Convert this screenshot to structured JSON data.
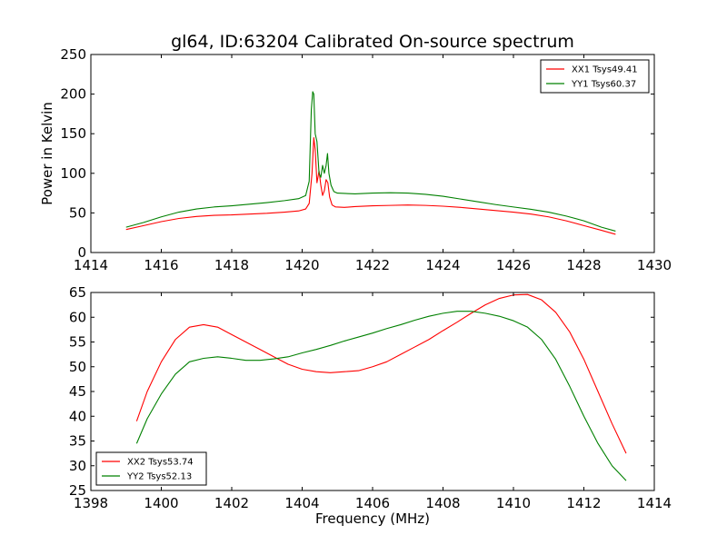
{
  "chart_data": [
    {
      "type": "line",
      "title": "gl64, ID:63204 Calibrated On-source spectrum",
      "xlabel": "",
      "ylabel": "Power in Kelvin",
      "xlim": [
        1414,
        1430
      ],
      "ylim": [
        0,
        250
      ],
      "xticks": [
        "1414",
        "1416",
        "1418",
        "1420",
        "1422",
        "1424",
        "1426",
        "1428",
        "1430"
      ],
      "yticks": [
        "0",
        "50",
        "100",
        "150",
        "200",
        "250"
      ],
      "grid": false,
      "legend_position": "top-right",
      "series": [
        {
          "name": "XX1 Tsys49.41",
          "color": "#ff0000",
          "x": [
            1415.0,
            1415.5,
            1416.0,
            1416.5,
            1417.0,
            1417.5,
            1418.0,
            1418.5,
            1419.0,
            1419.5,
            1419.9,
            1420.1,
            1420.2,
            1420.28,
            1420.33,
            1420.37,
            1420.42,
            1420.48,
            1420.53,
            1420.58,
            1420.63,
            1420.68,
            1420.73,
            1420.78,
            1420.85,
            1420.95,
            1421.2,
            1421.5,
            1422.0,
            1422.5,
            1423.0,
            1423.5,
            1424.0,
            1424.5,
            1425.0,
            1425.5,
            1426.0,
            1426.5,
            1427.0,
            1427.5,
            1428.0,
            1428.5,
            1428.9
          ],
          "y": [
            29,
            34,
            39,
            43,
            45.5,
            47,
            47.5,
            48.5,
            49.5,
            51,
            52.5,
            55,
            62,
            100,
            145,
            130,
            88,
            103,
            85,
            72,
            78,
            92,
            88,
            70,
            60,
            57.5,
            57,
            58,
            59,
            59.5,
            60,
            59.5,
            58.5,
            57,
            55,
            53,
            51,
            48.5,
            45,
            40,
            34,
            28,
            23
          ]
        },
        {
          "name": "YY1 Tsys60.37",
          "color": "#008000",
          "x": [
            1415.0,
            1415.5,
            1416.0,
            1416.5,
            1417.0,
            1417.5,
            1418.0,
            1418.5,
            1419.0,
            1419.5,
            1419.9,
            1420.1,
            1420.2,
            1420.26,
            1420.3,
            1420.33,
            1420.37,
            1420.42,
            1420.48,
            1420.53,
            1420.58,
            1420.63,
            1420.68,
            1420.72,
            1420.76,
            1420.82,
            1420.9,
            1421.0,
            1421.5,
            1422.0,
            1422.5,
            1423.0,
            1423.5,
            1424.0,
            1424.5,
            1425.0,
            1425.5,
            1426.0,
            1426.5,
            1427.0,
            1427.5,
            1428.0,
            1428.5,
            1428.9
          ],
          "y": [
            32,
            38,
            45,
            51,
            55,
            57.5,
            59,
            61,
            63,
            65.5,
            68,
            72,
            90,
            180,
            203,
            200,
            150,
            140,
            100,
            95,
            110,
            100,
            110,
            125,
            100,
            85,
            77,
            75,
            74,
            75,
            75.5,
            75,
            73.5,
            71,
            67.5,
            64,
            60.5,
            57.5,
            54.5,
            51,
            46,
            40,
            32,
            27
          ]
        }
      ]
    },
    {
      "type": "line",
      "title": "",
      "xlabel": "Frequency (MHz)",
      "ylabel": "",
      "xlim": [
        1398,
        1414
      ],
      "ylim": [
        25,
        65
      ],
      "xticks": [
        "1398",
        "1400",
        "1402",
        "1404",
        "1406",
        "1408",
        "1410",
        "1412",
        "1414"
      ],
      "yticks": [
        "25",
        "30",
        "35",
        "40",
        "45",
        "50",
        "55",
        "60",
        "65"
      ],
      "grid": false,
      "legend_position": "bottom-left",
      "series": [
        {
          "name": "XX2 Tsys53.74",
          "color": "#ff0000",
          "x": [
            1399.3,
            1399.6,
            1400.0,
            1400.4,
            1400.8,
            1401.2,
            1401.6,
            1402.0,
            1402.4,
            1402.8,
            1403.2,
            1403.6,
            1404.0,
            1404.4,
            1404.8,
            1405.2,
            1405.6,
            1406.0,
            1406.4,
            1406.8,
            1407.2,
            1407.6,
            1408.0,
            1408.4,
            1408.8,
            1409.2,
            1409.6,
            1410.0,
            1410.4,
            1410.8,
            1411.2,
            1411.6,
            1412.0,
            1412.4,
            1412.8,
            1413.2
          ],
          "y": [
            39,
            45,
            51,
            55.5,
            58,
            58.5,
            58,
            56.5,
            55,
            53.5,
            52,
            50.5,
            49.5,
            49,
            48.8,
            49,
            49.2,
            50,
            51,
            52.5,
            54,
            55.5,
            57.3,
            59,
            60.8,
            62.5,
            63.8,
            64.5,
            64.6,
            63.5,
            61,
            57,
            51.5,
            45,
            38.5,
            32.5
          ]
        },
        {
          "name": "YY2 Tsys52.13",
          "color": "#008000",
          "x": [
            1399.3,
            1399.6,
            1400.0,
            1400.4,
            1400.8,
            1401.2,
            1401.6,
            1402.0,
            1402.4,
            1402.8,
            1403.2,
            1403.6,
            1404.0,
            1404.4,
            1404.8,
            1405.2,
            1405.6,
            1406.0,
            1406.4,
            1406.8,
            1407.2,
            1407.6,
            1408.0,
            1408.4,
            1408.8,
            1409.2,
            1409.6,
            1410.0,
            1410.4,
            1410.8,
            1411.2,
            1411.6,
            1412.0,
            1412.4,
            1412.8,
            1413.2
          ],
          "y": [
            34.5,
            39.5,
            44.5,
            48.5,
            51,
            51.7,
            52,
            51.7,
            51.3,
            51.3,
            51.6,
            52,
            52.8,
            53.5,
            54.3,
            55.2,
            56,
            56.8,
            57.7,
            58.5,
            59.4,
            60.2,
            60.8,
            61.2,
            61.2,
            60.8,
            60.2,
            59.3,
            58,
            55.5,
            51.5,
            46,
            40,
            34.5,
            30,
            27
          ]
        }
      ]
    }
  ]
}
